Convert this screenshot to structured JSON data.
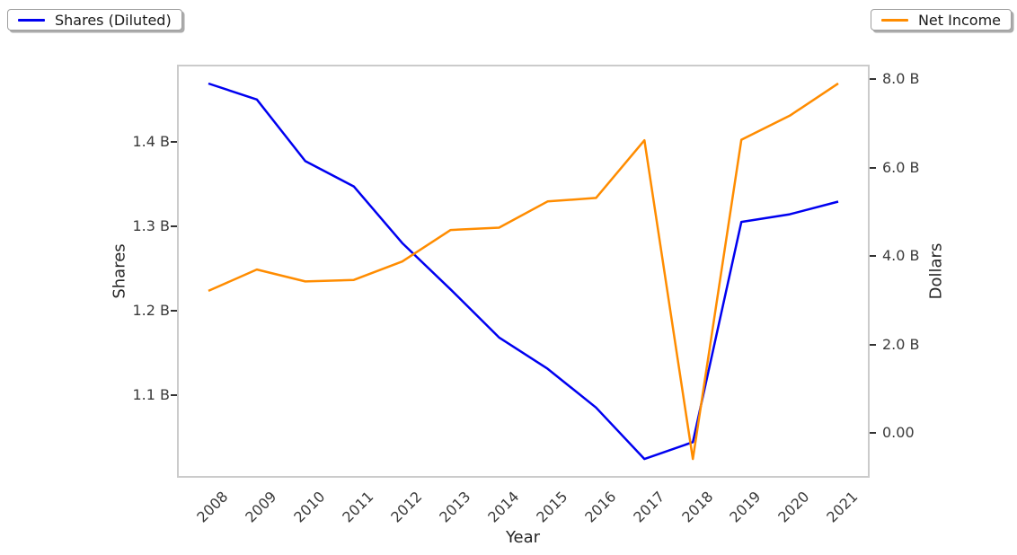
{
  "chart_data": {
    "type": "line",
    "xlabel": "Year",
    "x": [
      2008,
      2009,
      2010,
      2011,
      2012,
      2013,
      2014,
      2015,
      2016,
      2017,
      2018,
      2019,
      2020,
      2021
    ],
    "series": [
      {
        "name": "Shares (Diluted)",
        "axis": "left",
        "color": "#0000f0",
        "units": "billions of shares",
        "values": [
          1.469,
          1.45,
          1.377,
          1.347,
          1.28,
          1.225,
          1.168,
          1.131,
          1.085,
          1.024,
          1.044,
          1.305,
          1.314,
          1.329
        ]
      },
      {
        "name": "Net Income",
        "axis": "right",
        "color": "#ff8c00",
        "units": "billions of dollars",
        "values": [
          3.212,
          3.696,
          3.427,
          3.461,
          3.877,
          4.592,
          4.644,
          5.237,
          5.317,
          6.622,
          -0.594,
          6.634,
          7.179,
          7.91
        ]
      }
    ],
    "axes": {
      "left": {
        "label": "Shares",
        "lim": [
          1.0018,
          1.4913
        ],
        "ticks": [
          {
            "v": 1.1,
            "label": "1.1 B"
          },
          {
            "v": 1.2,
            "label": "1.2 B"
          },
          {
            "v": 1.3,
            "label": "1.3 B"
          },
          {
            "v": 1.4,
            "label": "1.4 B"
          }
        ]
      },
      "right": {
        "label": "Dollars",
        "lim": [
          -1.019,
          8.335
        ],
        "ticks": [
          {
            "v": 0.0,
            "label": "0.00"
          },
          {
            "v": 2.0,
            "label": "2.0 B"
          },
          {
            "v": 4.0,
            "label": "4.0 B"
          },
          {
            "v": 6.0,
            "label": "6.0 B"
          },
          {
            "v": 8.0,
            "label": "8.0 B"
          }
        ]
      }
    },
    "grid": false,
    "legend": {
      "left_box_label": "Shares (Diluted)",
      "right_box_label": "Net Income"
    }
  }
}
